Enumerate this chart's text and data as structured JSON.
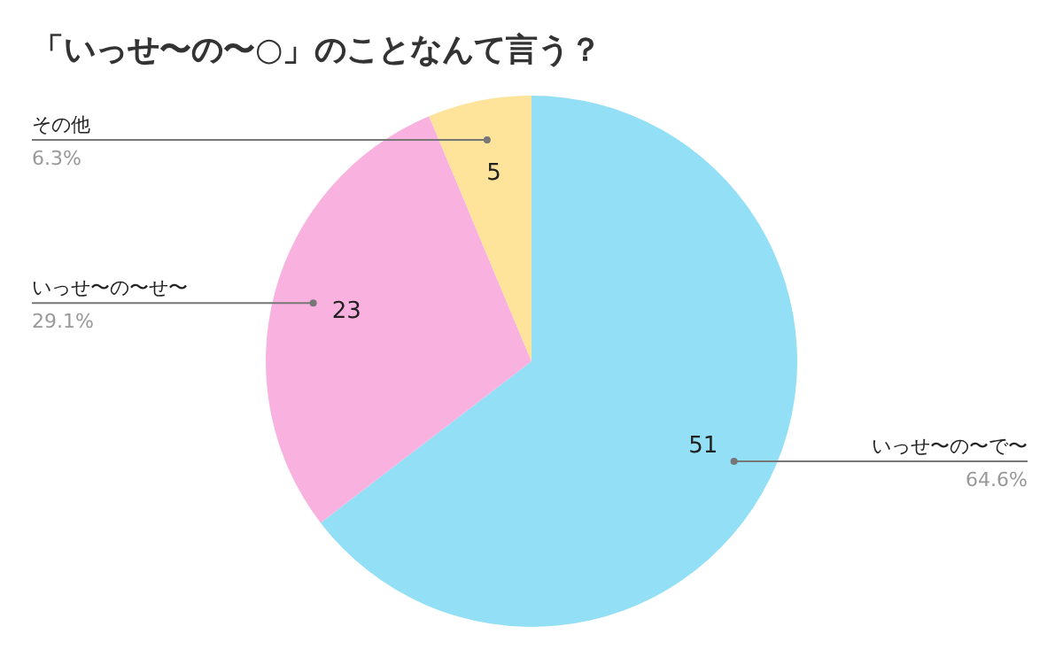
{
  "chart_data": {
    "type": "pie",
    "title": "「いっせ〜の〜○」のことなんて言う？",
    "categories": [
      "いっせ〜の〜で〜",
      "いっせ〜の〜せ〜",
      "その他"
    ],
    "values": [
      64.6,
      29.1,
      6.3
    ],
    "colors": [
      "#93dff5",
      "#f9b2e0",
      "#fde49a"
    ],
    "value_labels": [
      "64.6%",
      "29.1%",
      "6.3%"
    ],
    "annotations": [
      "51",
      "23",
      "5"
    ]
  }
}
